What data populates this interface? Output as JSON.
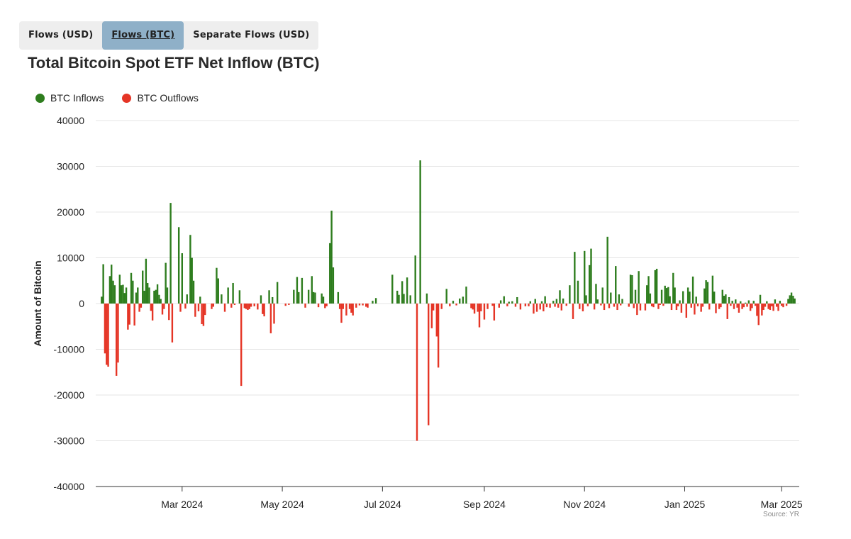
{
  "tabs": [
    {
      "label": "Flows (USD)",
      "active": false
    },
    {
      "label": "Flows (BTC)",
      "active": true
    },
    {
      "label": "Separate Flows (USD)",
      "active": false
    }
  ],
  "chart_title": "Total Bitcoin Spot ETF Net Inflow (BTC)",
  "source": "Source: YR",
  "colors": {
    "inflow": "#2e7d1e",
    "outflow": "#e53526",
    "grid": "#e4e4e4",
    "axis": "#333333",
    "accent_tab": "#8fb0c8"
  },
  "chart_data": {
    "type": "bar",
    "title": "Total Bitcoin Spot ETF Net Inflow (BTC)",
    "xlabel": "",
    "ylabel": "Amount of Bitcoin",
    "ylim": [
      -40000,
      40000
    ],
    "yticks": [
      "40000",
      "30000",
      "20000",
      "10000",
      "0",
      "-10000",
      "-20000",
      "-30000",
      "-40000"
    ],
    "xlim": [
      "2024-01-11",
      "2025-03-25"
    ],
    "xticks": [
      {
        "label": "Mar 2024",
        "day": 50
      },
      {
        "label": "May 2024",
        "day": 111
      },
      {
        "label": "Jul 2024",
        "day": 172
      },
      {
        "label": "Sep 2024",
        "day": 234
      },
      {
        "label": "Nov 2024",
        "day": 295
      },
      {
        "label": "Jan 2025",
        "day": 356
      },
      {
        "label": "Mar 2025",
        "day": 415
      }
    ],
    "legend": [
      {
        "name": "BTC Inflows",
        "color": "#2e7d1e"
      },
      {
        "name": "BTC Outflows",
        "color": "#e53526"
      }
    ],
    "grid": true,
    "legend_position": "top-left",
    "series": [
      {
        "name": "BTC Inflows",
        "points": [
          [
            1,
            1500
          ],
          [
            2,
            8600
          ],
          [
            6,
            6000
          ],
          [
            7,
            8500
          ],
          [
            8,
            5000
          ],
          [
            9,
            4000
          ],
          [
            12,
            6300
          ],
          [
            13,
            4000
          ],
          [
            14,
            4100
          ],
          [
            15,
            2300
          ],
          [
            16,
            3500
          ],
          [
            19,
            6700
          ],
          [
            20,
            5000
          ],
          [
            22,
            2400
          ],
          [
            23,
            3500
          ],
          [
            26,
            7200
          ],
          [
            27,
            2800
          ],
          [
            28,
            9800
          ],
          [
            29,
            4500
          ],
          [
            30,
            3500
          ],
          [
            33,
            2800
          ],
          [
            34,
            3000
          ],
          [
            35,
            4200
          ],
          [
            36,
            1900
          ],
          [
            37,
            1000
          ],
          [
            40,
            8900
          ],
          [
            41,
            3500
          ],
          [
            43,
            22000
          ],
          [
            48,
            16700
          ],
          [
            50,
            11000
          ],
          [
            53,
            2000
          ],
          [
            55,
            15000
          ],
          [
            56,
            10000
          ],
          [
            57,
            5000
          ],
          [
            61,
            1500
          ],
          [
            71,
            7800
          ],
          [
            72,
            5500
          ],
          [
            74,
            2000
          ],
          [
            78,
            3500
          ],
          [
            81,
            4500
          ],
          [
            85,
            2900
          ],
          [
            98,
            1800
          ],
          [
            103,
            2900
          ],
          [
            105,
            1400
          ],
          [
            108,
            4700
          ],
          [
            118,
            3000
          ],
          [
            120,
            5800
          ],
          [
            121,
            2500
          ],
          [
            123,
            5600
          ],
          [
            127,
            3000
          ],
          [
            129,
            6000
          ],
          [
            130,
            2500
          ],
          [
            131,
            2400
          ],
          [
            135,
            2200
          ],
          [
            136,
            1500
          ],
          [
            140,
            13200
          ],
          [
            141,
            20300
          ],
          [
            142,
            7900
          ],
          [
            145,
            2500
          ],
          [
            166,
            600
          ],
          [
            168,
            1200
          ],
          [
            178,
            6300
          ],
          [
            181,
            2800
          ],
          [
            182,
            1900
          ],
          [
            184,
            4900
          ],
          [
            185,
            2100
          ],
          [
            187,
            5700
          ],
          [
            189,
            1800
          ],
          [
            192,
            10500
          ],
          [
            195,
            31300
          ],
          [
            199,
            2200
          ],
          [
            211,
            3200
          ],
          [
            215,
            600
          ],
          [
            219,
            1100
          ],
          [
            221,
            1500
          ],
          [
            223,
            3700
          ],
          [
            244,
            700
          ],
          [
            246,
            1600
          ],
          [
            249,
            400
          ],
          [
            251,
            500
          ],
          [
            254,
            1400
          ],
          [
            262,
            500
          ],
          [
            265,
            1000
          ],
          [
            269,
            500
          ],
          [
            271,
            1600
          ],
          [
            276,
            600
          ],
          [
            278,
            1000
          ],
          [
            280,
            2900
          ],
          [
            282,
            1100
          ],
          [
            286,
            4000
          ],
          [
            289,
            11300
          ],
          [
            291,
            5000
          ],
          [
            295,
            11500
          ],
          [
            296,
            1800
          ],
          [
            298,
            8400
          ],
          [
            299,
            12000
          ],
          [
            302,
            4300
          ],
          [
            303,
            900
          ],
          [
            306,
            3500
          ],
          [
            309,
            14600
          ],
          [
            311,
            2400
          ],
          [
            314,
            8200
          ],
          [
            316,
            2000
          ],
          [
            318,
            1000
          ],
          [
            323,
            6300
          ],
          [
            324,
            6200
          ],
          [
            326,
            3000
          ],
          [
            328,
            7100
          ],
          [
            333,
            4000
          ],
          [
            334,
            6000
          ],
          [
            335,
            2200
          ],
          [
            338,
            7300
          ],
          [
            339,
            7600
          ],
          [
            342,
            3000
          ],
          [
            344,
            3900
          ],
          [
            345,
            3400
          ],
          [
            346,
            3600
          ],
          [
            347,
            1600
          ],
          [
            349,
            6700
          ],
          [
            350,
            3500
          ],
          [
            353,
            700
          ],
          [
            355,
            2700
          ],
          [
            358,
            3500
          ],
          [
            359,
            2600
          ],
          [
            361,
            5900
          ],
          [
            363,
            1500
          ],
          [
            368,
            3300
          ],
          [
            369,
            5100
          ],
          [
            370,
            4700
          ],
          [
            373,
            6100
          ],
          [
            374,
            2600
          ],
          [
            379,
            3000
          ],
          [
            380,
            1700
          ],
          [
            381,
            2000
          ],
          [
            383,
            1400
          ],
          [
            385,
            600
          ],
          [
            387,
            900
          ],
          [
            390,
            500
          ],
          [
            393,
            200
          ],
          [
            395,
            700
          ],
          [
            398,
            600
          ],
          [
            402,
            1900
          ],
          [
            406,
            500
          ],
          [
            411,
            900
          ],
          [
            414,
            600
          ],
          [
            419,
            1000
          ],
          [
            420,
            1800
          ],
          [
            421,
            2400
          ],
          [
            422,
            1700
          ],
          [
            423,
            1100
          ]
        ]
      },
      {
        "name": "BTC Outflows",
        "points": [
          [
            3,
            -10900
          ],
          [
            4,
            -13400
          ],
          [
            5,
            -13800
          ],
          [
            10,
            -15800
          ],
          [
            11,
            -12900
          ],
          [
            17,
            -5700
          ],
          [
            18,
            -4600
          ],
          [
            21,
            -4800
          ],
          [
            24,
            -1800
          ],
          [
            25,
            -900
          ],
          [
            31,
            -1600
          ],
          [
            32,
            -3700
          ],
          [
            38,
            -2400
          ],
          [
            39,
            -1200
          ],
          [
            42,
            -3600
          ],
          [
            44,
            -8500
          ],
          [
            49,
            -1800
          ],
          [
            52,
            -1100
          ],
          [
            58,
            -2900
          ],
          [
            60,
            -1700
          ],
          [
            62,
            -4500
          ],
          [
            63,
            -4900
          ],
          [
            64,
            -2500
          ],
          [
            68,
            -1200
          ],
          [
            69,
            -700
          ],
          [
            76,
            -1800
          ],
          [
            80,
            -900
          ],
          [
            82,
            -300
          ],
          [
            86,
            -18000
          ],
          [
            88,
            -1000
          ],
          [
            89,
            -1200
          ],
          [
            90,
            -1400
          ],
          [
            91,
            -1200
          ],
          [
            92,
            -700
          ],
          [
            94,
            -600
          ],
          [
            96,
            -1300
          ],
          [
            99,
            -2300
          ],
          [
            100,
            -2800
          ],
          [
            104,
            -6500
          ],
          [
            106,
            -4400
          ],
          [
            113,
            -500
          ],
          [
            115,
            -300
          ],
          [
            125,
            -900
          ],
          [
            133,
            -800
          ],
          [
            137,
            -1000
          ],
          [
            138,
            -600
          ],
          [
            146,
            -1200
          ],
          [
            147,
            -4200
          ],
          [
            148,
            -1200
          ],
          [
            150,
            -2600
          ],
          [
            152,
            -1200
          ],
          [
            153,
            -2000
          ],
          [
            154,
            -2600
          ],
          [
            156,
            -900
          ],
          [
            158,
            -400
          ],
          [
            160,
            -400
          ],
          [
            162,
            -700
          ],
          [
            163,
            -900
          ],
          [
            193,
            -30000
          ],
          [
            200,
            -26600
          ],
          [
            202,
            -5400
          ],
          [
            203,
            -1500
          ],
          [
            205,
            -7200
          ],
          [
            206,
            -14000
          ],
          [
            208,
            -1200
          ],
          [
            213,
            -600
          ],
          [
            217,
            -400
          ],
          [
            226,
            -1000
          ],
          [
            227,
            -1300
          ],
          [
            228,
            -2200
          ],
          [
            230,
            -1800
          ],
          [
            231,
            -5200
          ],
          [
            232,
            -1700
          ],
          [
            234,
            -3500
          ],
          [
            236,
            -1200
          ],
          [
            239,
            -500
          ],
          [
            240,
            -3700
          ],
          [
            243,
            -900
          ],
          [
            248,
            -600
          ],
          [
            253,
            -700
          ],
          [
            256,
            -1300
          ],
          [
            259,
            -600
          ],
          [
            261,
            -600
          ],
          [
            264,
            -2200
          ],
          [
            266,
            -1800
          ],
          [
            268,
            -1300
          ],
          [
            270,
            -1700
          ],
          [
            272,
            -800
          ],
          [
            274,
            -900
          ],
          [
            277,
            -700
          ],
          [
            279,
            -900
          ],
          [
            281,
            -1500
          ],
          [
            284,
            -500
          ],
          [
            288,
            -3400
          ],
          [
            292,
            -1200
          ],
          [
            294,
            -1700
          ],
          [
            297,
            -600
          ],
          [
            301,
            -1300
          ],
          [
            305,
            -400
          ],
          [
            307,
            -1400
          ],
          [
            310,
            -1000
          ],
          [
            313,
            -700
          ],
          [
            315,
            -1400
          ],
          [
            317,
            -400
          ],
          [
            322,
            -700
          ],
          [
            325,
            -1000
          ],
          [
            327,
            -2500
          ],
          [
            329,
            -1500
          ],
          [
            332,
            -1500
          ],
          [
            336,
            -600
          ],
          [
            337,
            -800
          ],
          [
            340,
            -1200
          ],
          [
            341,
            -300
          ],
          [
            343,
            -500
          ],
          [
            348,
            -1400
          ],
          [
            351,
            -1400
          ],
          [
            352,
            -600
          ],
          [
            354,
            -2000
          ],
          [
            357,
            -3100
          ],
          [
            360,
            -900
          ],
          [
            362,
            -2400
          ],
          [
            364,
            -600
          ],
          [
            366,
            -1800
          ],
          [
            367,
            -700
          ],
          [
            371,
            -1300
          ],
          [
            375,
            -2100
          ],
          [
            377,
            -1200
          ],
          [
            378,
            -800
          ],
          [
            382,
            -3400
          ],
          [
            384,
            -500
          ],
          [
            386,
            -1200
          ],
          [
            388,
            -900
          ],
          [
            389,
            -2000
          ],
          [
            391,
            -1200
          ],
          [
            392,
            -800
          ],
          [
            394,
            -700
          ],
          [
            396,
            -1600
          ],
          [
            397,
            -1000
          ],
          [
            399,
            -500
          ],
          [
            400,
            -2700
          ],
          [
            401,
            -4700
          ],
          [
            403,
            -2600
          ],
          [
            404,
            -1400
          ],
          [
            405,
            -700
          ],
          [
            407,
            -1200
          ],
          [
            408,
            -1400
          ],
          [
            409,
            -600
          ],
          [
            410,
            -1600
          ],
          [
            412,
            -700
          ],
          [
            413,
            -1600
          ],
          [
            415,
            -500
          ],
          [
            416,
            -800
          ],
          [
            418,
            -500
          ]
        ]
      }
    ]
  }
}
